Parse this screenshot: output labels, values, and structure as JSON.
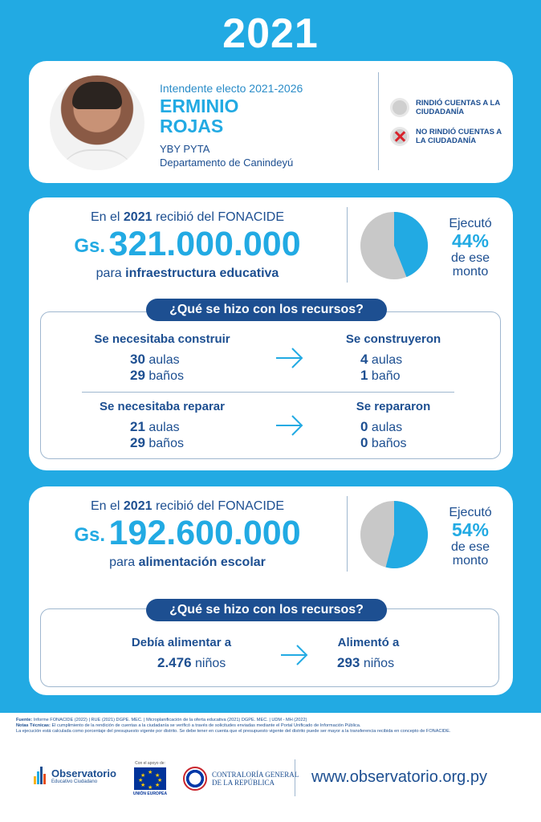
{
  "year": "2021",
  "profile": {
    "role": "Intendente electo 2021-2026",
    "first_name": "ERMINIO",
    "last_name": "ROJAS",
    "town": "YBY PYTA",
    "department": "Departamento de Canindeyú",
    "legend": [
      {
        "icon": "gray-circle-icon",
        "label": "RINDIÓ CUENTAS A LA CIUDADANÍA"
      },
      {
        "icon": "red-x-icon",
        "label": "NO RINDIÓ CUENTAS A LA CIUDADANÍA"
      }
    ]
  },
  "infra": {
    "received_prefix": "En el",
    "received_year": "2021",
    "received_suffix": "recibió del FONACIDE",
    "currency": "Gs.",
    "amount": "321.000.000",
    "purpose_prefix": "para",
    "purpose": "infraestructura educativa",
    "executed_label_top": "Ejecutó",
    "executed_pct": "44%",
    "executed_label_bottom": "de ese monto",
    "executed_fraction": 0.44,
    "question": "¿Qué se hizo con los recursos?",
    "build_needed_title": "Se necesitaba construir",
    "build_needed": [
      {
        "n": "30",
        "unit": "aulas"
      },
      {
        "n": "29",
        "unit": "baños"
      }
    ],
    "built_title": "Se construyeron",
    "built": [
      {
        "n": "4",
        "unit": "aulas"
      },
      {
        "n": "1",
        "unit": "baño"
      }
    ],
    "repair_needed_title": "Se necesitaba reparar",
    "repair_needed": [
      {
        "n": "21",
        "unit": "aulas"
      },
      {
        "n": "29",
        "unit": "baños"
      }
    ],
    "repaired_title": "Se repararon",
    "repaired": [
      {
        "n": "0",
        "unit": "aulas"
      },
      {
        "n": "0",
        "unit": "baños"
      }
    ]
  },
  "food": {
    "received_prefix": "En el",
    "received_year": "2021",
    "received_suffix": "recibió del FONACIDE",
    "currency": "Gs.",
    "amount": "192.600.000",
    "purpose_prefix": "para",
    "purpose": "alimentación escolar",
    "executed_label_top": "Ejecutó",
    "executed_pct": "54%",
    "executed_label_bottom": "de ese monto",
    "executed_fraction": 0.54,
    "question": "¿Qué se hizo con los recursos?",
    "needed_title": "Debía alimentar a",
    "needed_n": "2.476",
    "needed_unit": "niños",
    "done_title": "Alimentó a",
    "done_n": "293",
    "done_unit": "niños"
  },
  "footer": {
    "source_label": "Fuente:",
    "source_text": "Informe FONACIDE (2022) | RUE (2021) DGPE. MEC. | Microplanificación de la oferta educativa (2021) DGPE. MEC. | UDM - MH (2022)",
    "notes_label": "Notas Técnicas:",
    "notes_text": "El cumplimiento de la rendición de cuentas a la ciudadanía se verificó a través de solicitudes enviadas mediante el Portal Unificado de Información Pública.",
    "notes_text2": "La ejecución está calculada como porcentaje del presupuesto vigente por distrito. Se debe tener en cuenta que el presupuesto vigente del distrito puede ser mayor a la transferencia recibida en concepto de FONACIDE.",
    "obs_title": "Observatorio",
    "obs_sub": "Educativo Ciudadano",
    "eu_support": "Con el apoyo de:",
    "eu_label": "UNIÓN EUROPEA",
    "cgr_line1": "CONTRALORÍA GENERAL",
    "cgr_line2": "DE LA REPÚBLICA",
    "url": "www.observatorio.org.py"
  }
}
